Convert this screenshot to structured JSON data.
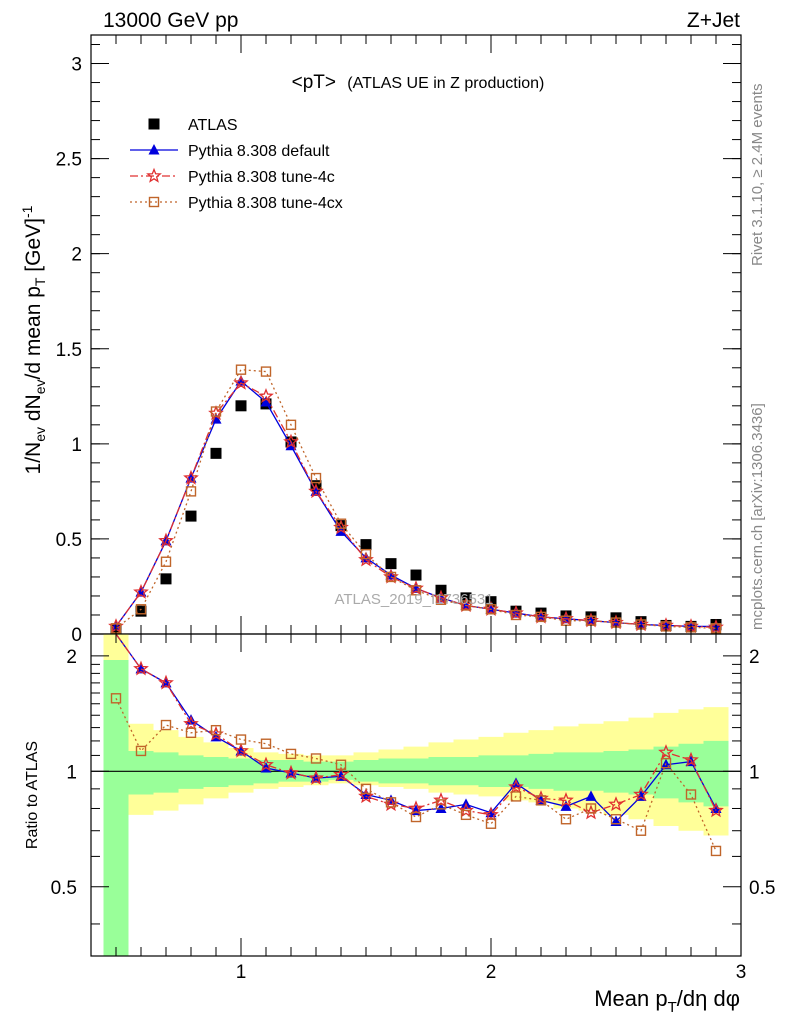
{
  "header": {
    "left": "13000 GeV pp",
    "right": "Z+Jet"
  },
  "side_labels": {
    "rivet": "Rivet 3.1.10, ≥ 2.4M events",
    "mcplots": "mcplots.cern.ch [arXiv:1306.3436]"
  },
  "watermark": "ATLAS_2019_I1736531",
  "chart_data": [
    {
      "type": "scatter",
      "title": "<pT> (ATLAS UE in Z production)",
      "title_main": "<pT>",
      "title_sub": "(ATLAS UE in Z production)",
      "ylabel": "1/N_ev dN_ev/d mean p_T [GeV]^-1",
      "ylabel_parts": {
        "a": "1/N",
        "a_sub": "ev",
        "b": " dN",
        "b_sub": "ev",
        "c": "/d mean p",
        "c_sub": "T",
        "d": " [GeV]",
        "d_sup": "-1"
      },
      "xlim": [
        0.4,
        3.0
      ],
      "ylim": [
        0,
        3.15
      ],
      "yticks": [
        0,
        0.5,
        1,
        1.5,
        2,
        2.5,
        3
      ],
      "yticklabels": [
        "0",
        "0.5",
        "1",
        "1.5",
        "2",
        "2.5",
        "3"
      ],
      "legend_position": "top-left",
      "x": [
        0.5,
        0.6,
        0.7,
        0.8,
        0.9,
        1.0,
        1.1,
        1.2,
        1.3,
        1.4,
        1.5,
        1.6,
        1.7,
        1.8,
        1.9,
        2.0,
        2.1,
        2.2,
        2.3,
        2.4,
        2.5,
        2.6,
        2.7,
        2.8,
        2.9
      ],
      "series": [
        {
          "name": "ATLAS",
          "color": "#000000",
          "marker": "square-filled",
          "values": [
            0.02,
            0.12,
            0.29,
            0.62,
            0.95,
            1.2,
            1.21,
            1.01,
            0.78,
            0.57,
            0.47,
            0.37,
            0.31,
            0.23,
            0.19,
            0.17,
            0.12,
            0.11,
            0.095,
            0.09,
            0.085,
            0.065,
            0.045,
            0.04,
            0.05
          ]
        },
        {
          "name": "Pythia 8.308 default",
          "color": "#0000dd",
          "marker": "triangle-filled",
          "line": "solid",
          "values": [
            0.04,
            0.22,
            0.49,
            0.82,
            1.13,
            1.33,
            1.22,
            0.99,
            0.75,
            0.54,
            0.4,
            0.31,
            0.24,
            0.19,
            0.15,
            0.13,
            0.11,
            0.09,
            0.08,
            0.07,
            0.06,
            0.05,
            0.045,
            0.04,
            0.04
          ]
        },
        {
          "name": "Pythia 8.308 tune-4c",
          "color": "#e03030",
          "marker": "star",
          "line": "dashdot",
          "values": [
            0.04,
            0.22,
            0.49,
            0.82,
            1.16,
            1.32,
            1.25,
            1.01,
            0.75,
            0.56,
            0.39,
            0.3,
            0.24,
            0.19,
            0.15,
            0.13,
            0.11,
            0.09,
            0.08,
            0.07,
            0.06,
            0.05,
            0.045,
            0.04,
            0.035
          ]
        },
        {
          "name": "Pythia 8.308 tune-4cx",
          "color": "#c0652a",
          "marker": "square-open",
          "line": "dotted",
          "values": [
            0.03,
            0.13,
            0.38,
            0.75,
            1.17,
            1.39,
            1.38,
            1.1,
            0.82,
            0.58,
            0.42,
            0.3,
            0.23,
            0.18,
            0.15,
            0.13,
            0.1,
            0.09,
            0.07,
            0.07,
            0.06,
            0.05,
            0.04,
            0.035,
            0.03
          ]
        }
      ]
    },
    {
      "type": "line",
      "ylabel": "Ratio to ATLAS",
      "xlabel": "Mean p_T/dη dφ",
      "xlabel_parts": {
        "a": "Mean p",
        "a_sub": "T",
        "b": "/dη dφ"
      },
      "xlim": [
        0.4,
        3.0
      ],
      "ylim": [
        0.33,
        2.28
      ],
      "log_y": true,
      "xticks": [
        1,
        2,
        3
      ],
      "xticklabels": [
        "1",
        "2",
        "3"
      ],
      "yticks": [
        0.5,
        1,
        2
      ],
      "yticklabels": [
        "0.5",
        "1",
        "2"
      ],
      "x": [
        0.5,
        0.6,
        0.7,
        0.8,
        0.9,
        1.0,
        1.1,
        1.2,
        1.3,
        1.4,
        1.5,
        1.6,
        1.7,
        1.8,
        1.9,
        2.0,
        2.1,
        2.2,
        2.3,
        2.4,
        2.5,
        2.6,
        2.7,
        2.8,
        2.9
      ],
      "band_edges": [
        0.45,
        0.55,
        0.65,
        0.75,
        0.85,
        0.95,
        1.05,
        1.15,
        1.25,
        1.35,
        1.45,
        1.55,
        1.65,
        1.75,
        1.85,
        1.95,
        2.05,
        2.15,
        2.25,
        2.35,
        2.45,
        2.55,
        2.65,
        2.75,
        2.85,
        2.95
      ],
      "band_stat": {
        "color": "#99ff99",
        "lo": [
          0.3,
          0.87,
          0.88,
          0.9,
          0.91,
          0.92,
          0.93,
          0.94,
          0.94,
          0.95,
          0.94,
          0.93,
          0.93,
          0.92,
          0.92,
          0.91,
          0.91,
          0.9,
          0.89,
          0.89,
          0.88,
          0.87,
          0.85,
          0.83,
          0.81
        ],
        "hi": [
          1.95,
          1.13,
          1.12,
          1.1,
          1.09,
          1.08,
          1.07,
          1.07,
          1.06,
          1.06,
          1.07,
          1.08,
          1.08,
          1.09,
          1.09,
          1.1,
          1.1,
          1.11,
          1.12,
          1.12,
          1.13,
          1.14,
          1.16,
          1.18,
          1.2
        ]
      },
      "band_total": {
        "color": "#ffff99",
        "lo": [
          0.3,
          0.77,
          0.79,
          0.82,
          0.85,
          0.88,
          0.9,
          0.91,
          0.92,
          0.93,
          0.92,
          0.91,
          0.9,
          0.88,
          0.87,
          0.86,
          0.84,
          0.83,
          0.8,
          0.79,
          0.77,
          0.75,
          0.72,
          0.7,
          0.68
        ],
        "hi": [
          2.3,
          1.33,
          1.28,
          1.23,
          1.19,
          1.15,
          1.12,
          1.11,
          1.1,
          1.1,
          1.12,
          1.14,
          1.16,
          1.19,
          1.21,
          1.23,
          1.26,
          1.28,
          1.31,
          1.33,
          1.35,
          1.38,
          1.42,
          1.45,
          1.47
        ]
      },
      "series": [
        {
          "name": "Pythia 8.308 default",
          "color": "#0000dd",
          "marker": "triangle-filled",
          "line": "solid",
          "values": [
            2.3,
            1.85,
            1.7,
            1.36,
            1.23,
            1.13,
            1.02,
            0.99,
            0.96,
            0.97,
            0.87,
            0.84,
            0.79,
            0.8,
            0.82,
            0.78,
            0.93,
            0.84,
            0.81,
            0.86,
            0.74,
            0.86,
            1.04,
            1.06,
            0.8
          ]
        },
        {
          "name": "Pythia 8.308 tune-4c",
          "color": "#e03030",
          "marker": "star",
          "line": "dashdot",
          "values": [
            2.3,
            1.85,
            1.7,
            1.33,
            1.25,
            1.13,
            1.04,
            0.99,
            0.96,
            0.98,
            0.86,
            0.82,
            0.8,
            0.84,
            0.79,
            0.77,
            0.91,
            0.85,
            0.84,
            0.78,
            0.82,
            0.87,
            1.12,
            1.07,
            0.79
          ]
        },
        {
          "name": "Pythia 8.308 tune-4cx",
          "color": "#c0652a",
          "marker": "square-open",
          "line": "dotted",
          "values": [
            1.55,
            1.13,
            1.32,
            1.26,
            1.28,
            1.21,
            1.18,
            1.11,
            1.08,
            1.04,
            0.9,
            0.83,
            0.76,
            0.82,
            0.77,
            0.73,
            0.86,
            0.84,
            0.75,
            0.8,
            0.75,
            0.7,
            1.05,
            0.87,
            0.62
          ]
        }
      ]
    }
  ]
}
